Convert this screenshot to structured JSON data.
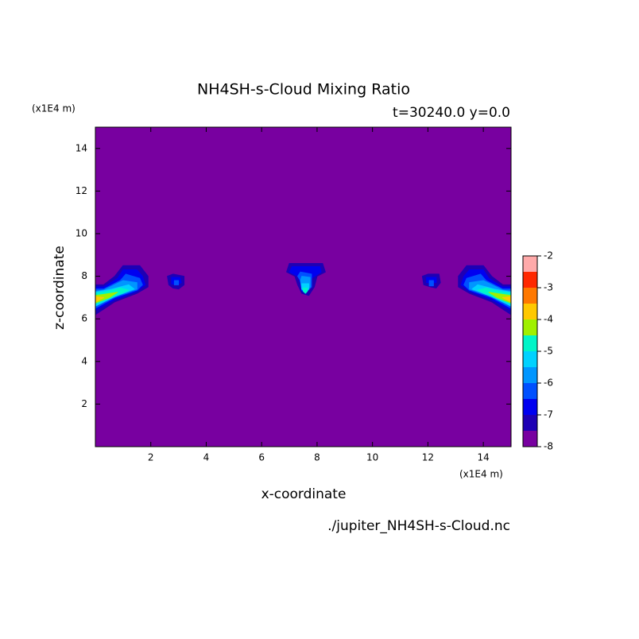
{
  "chart_data": {
    "type": "contour",
    "title": "NH4SH-s-Cloud Mixing Ratio",
    "subtitle": "t=30240.0 y=0.0",
    "x_label": "x-coordinate",
    "y_label": "z-coordinate",
    "x_unit": "(x1E4 m)",
    "y_unit": "(x1E4 m)",
    "source": "./jupiter_NH4SH-s-Cloud.nc",
    "xlim": [
      0,
      15
    ],
    "ylim": [
      0,
      15
    ],
    "xticks": [
      2,
      4,
      6,
      8,
      10,
      12,
      14
    ],
    "yticks": [
      2,
      4,
      6,
      8,
      10,
      12,
      14
    ],
    "levels": [
      -8,
      -7.5,
      -7,
      -6.5,
      -6,
      -5.5,
      -5,
      -4.5,
      -4,
      -3.5,
      -3,
      -2.5,
      -2
    ],
    "colors": [
      "#7800a0",
      "#1e00b4",
      "#0000f0",
      "#0050ff",
      "#0096ff",
      "#00d2ff",
      "#00f5c8",
      "#a0f000",
      "#ffc800",
      "#ff7800",
      "#ff2800",
      "#ffaaaa"
    ],
    "colorbar_ticks": [
      -8,
      -7,
      -6,
      -5,
      -4,
      -3,
      -2
    ],
    "shapes": [
      {
        "level": -7.5,
        "x": [
          0,
          0.7,
          1.5,
          1.9,
          1.9,
          1.6,
          1.0,
          0.7,
          0.3,
          0
        ],
        "z": [
          6.2,
          6.8,
          7.2,
          7.5,
          8.0,
          8.5,
          8.5,
          8.0,
          7.6,
          7.6
        ]
      },
      {
        "level": -7,
        "x": [
          0,
          0.7,
          1.5,
          1.8,
          1.7,
          1.5,
          1.0,
          0.8,
          0.3,
          0
        ],
        "z": [
          6.4,
          6.9,
          7.3,
          7.6,
          8.0,
          8.3,
          8.3,
          7.9,
          7.5,
          7.5
        ]
      },
      {
        "level": -6.5,
        "x": [
          0,
          0.7,
          1.5,
          1.7,
          1.6,
          1.1,
          0.9,
          0.3,
          0
        ],
        "z": [
          6.5,
          7.0,
          7.35,
          7.6,
          7.9,
          8.1,
          7.8,
          7.4,
          7.4
        ]
      },
      {
        "level": -6,
        "x": [
          0,
          0.7,
          1.5,
          1.5,
          1.0,
          0.3,
          0
        ],
        "z": [
          6.6,
          7.05,
          7.4,
          7.7,
          7.8,
          7.35,
          7.3
        ]
      },
      {
        "level": -5.5,
        "x": [
          0,
          0.7,
          1.4,
          1.2,
          0.6,
          0
        ],
        "z": [
          6.6,
          7.05,
          7.4,
          7.6,
          7.4,
          7.25
        ]
      },
      {
        "level": -5,
        "x": [
          0,
          0.6,
          1.2,
          0.9,
          0.3,
          0
        ],
        "z": [
          6.7,
          7.0,
          7.35,
          7.45,
          7.25,
          7.2
        ]
      },
      {
        "level": -4.5,
        "x": [
          0,
          0.5,
          0.8,
          0.3,
          0
        ],
        "z": [
          6.75,
          7.0,
          7.25,
          7.15,
          7.1
        ]
      },
      {
        "level": -4,
        "x": [
          0,
          0.3,
          0
        ],
        "z": [
          6.8,
          7.0,
          7.05
        ]
      },
      {
        "level": -7.5,
        "x": [
          15,
          14.3,
          13.5,
          13.1,
          13.1,
          13.4,
          14.0,
          14.3,
          14.7,
          15
        ],
        "z": [
          6.2,
          6.8,
          7.2,
          7.5,
          8.0,
          8.5,
          8.5,
          8.0,
          7.6,
          7.6
        ]
      },
      {
        "level": -7,
        "x": [
          15,
          14.3,
          13.5,
          13.2,
          13.3,
          13.5,
          14.0,
          14.2,
          14.7,
          15
        ],
        "z": [
          6.4,
          6.9,
          7.3,
          7.6,
          8.0,
          8.3,
          8.3,
          7.9,
          7.5,
          7.5
        ]
      },
      {
        "level": -6.5,
        "x": [
          15,
          14.3,
          13.5,
          13.3,
          13.4,
          13.9,
          14.1,
          14.7,
          15
        ],
        "z": [
          6.5,
          7.0,
          7.35,
          7.6,
          7.9,
          8.1,
          7.8,
          7.4,
          7.4
        ]
      },
      {
        "level": -6,
        "x": [
          15,
          14.3,
          13.5,
          13.5,
          14.0,
          14.7,
          15
        ],
        "z": [
          6.6,
          7.05,
          7.4,
          7.7,
          7.8,
          7.35,
          7.3
        ]
      },
      {
        "level": -5.5,
        "x": [
          15,
          14.3,
          13.6,
          13.8,
          14.4,
          15
        ],
        "z": [
          6.6,
          7.05,
          7.4,
          7.6,
          7.4,
          7.25
        ]
      },
      {
        "level": -5,
        "x": [
          15,
          14.4,
          13.8,
          14.1,
          14.7,
          15
        ],
        "z": [
          6.7,
          7.0,
          7.35,
          7.45,
          7.25,
          7.2
        ]
      },
      {
        "level": -4.5,
        "x": [
          15,
          14.5,
          14.2,
          14.7,
          15
        ],
        "z": [
          6.75,
          7.0,
          7.25,
          7.15,
          7.1
        ]
      },
      {
        "level": -4,
        "x": [
          15,
          14.7,
          15
        ],
        "z": [
          6.8,
          7.0,
          7.05
        ]
      },
      {
        "level": -7.5,
        "x": [
          2.65,
          2.6,
          2.8,
          3.2,
          3.2,
          3.0,
          2.8
        ],
        "z": [
          7.6,
          8.0,
          8.1,
          8.0,
          7.6,
          7.4,
          7.45
        ]
      },
      {
        "level": -7,
        "x": [
          2.75,
          2.75,
          3.05,
          3.1,
          2.9
        ],
        "z": [
          7.65,
          7.95,
          7.95,
          7.7,
          7.6
        ]
      },
      {
        "level": -6.5,
        "x": [
          2.85,
          2.85,
          3.0,
          3.0
        ],
        "z": [
          7.6,
          7.8,
          7.8,
          7.6
        ]
      },
      {
        "level": -7.5,
        "x": [
          11.85,
          11.8,
          12.0,
          12.4,
          12.45,
          12.3,
          12.1
        ],
        "z": [
          7.6,
          8.0,
          8.1,
          8.1,
          7.7,
          7.45,
          7.5
        ]
      },
      {
        "level": -7,
        "x": [
          11.95,
          11.95,
          12.3,
          12.3
        ],
        "z": [
          7.7,
          7.95,
          7.95,
          7.7
        ]
      },
      {
        "level": -6.5,
        "x": [
          12.05,
          12.05,
          12.2,
          12.2
        ],
        "z": [
          7.55,
          7.8,
          7.8,
          7.55
        ]
      },
      {
        "level": -7.5,
        "x": [
          6.9,
          7.0,
          8.2,
          8.3,
          8.0,
          7.9,
          7.7,
          7.45,
          7.3,
          7.2
        ],
        "z": [
          8.2,
          8.6,
          8.6,
          8.2,
          8.0,
          7.5,
          7.1,
          7.2,
          7.6,
          8.0
        ]
      },
      {
        "level": -7,
        "x": [
          7.0,
          7.1,
          8.1,
          8.15,
          7.8,
          7.75,
          7.6,
          7.45,
          7.4,
          7.3
        ],
        "z": [
          8.2,
          8.45,
          8.45,
          8.2,
          7.9,
          7.5,
          7.2,
          7.3,
          7.7,
          8.0
        ]
      },
      {
        "level": -6.5,
        "x": [
          7.3,
          7.4,
          7.8,
          7.8,
          7.6,
          7.45,
          7.4
        ],
        "z": [
          8.0,
          8.2,
          8.1,
          7.5,
          7.25,
          7.35,
          7.8
        ]
      },
      {
        "level": -6,
        "x": [
          7.4,
          7.45,
          7.75,
          7.75,
          7.6,
          7.45
        ],
        "z": [
          7.8,
          8.0,
          7.95,
          7.5,
          7.3,
          7.4
        ]
      },
      {
        "level": -5.5,
        "x": [
          7.45,
          7.45,
          7.7,
          7.7,
          7.6
        ],
        "z": [
          7.4,
          7.65,
          7.65,
          7.4,
          7.25
        ]
      },
      {
        "level": -5,
        "x": [
          7.5,
          7.5,
          7.65,
          7.65,
          7.58
        ],
        "z": [
          7.3,
          7.45,
          7.45,
          7.3,
          7.2
        ]
      }
    ]
  }
}
